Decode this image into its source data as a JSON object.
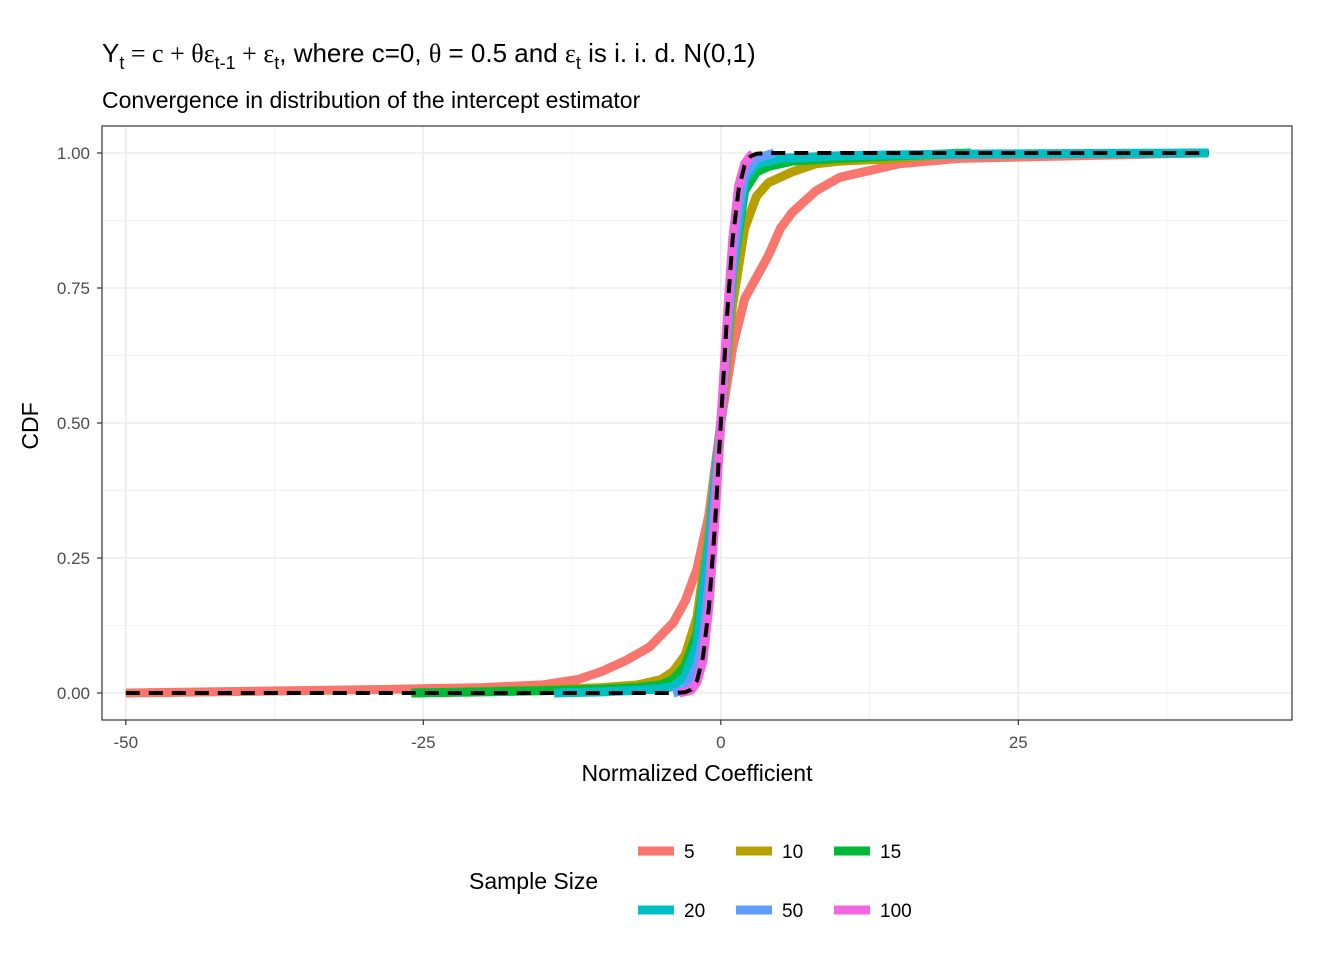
{
  "chart_data": {
    "type": "line",
    "title_parts": {
      "y": "Y",
      "t": "t",
      "eq": " = c + ",
      "theta": "θ",
      "eps": "ε",
      "t_minus_1": "t-1",
      "plus": " + ",
      "where": ", where c=0, ",
      "theta_eq": " = 0.5 and ",
      "iid": " is i. i. d. N(0,1)"
    },
    "subtitle": "Convergence in distribution of the intercept estimator",
    "xlabel": "Normalized Coefficient",
    "ylabel": "CDF",
    "xlim": [
      -52,
      48
    ],
    "ylim": [
      -0.05,
      1.05
    ],
    "x_ticks": [
      -50,
      -25,
      0,
      25
    ],
    "x_tick_labels": [
      "-50",
      "-25",
      "0",
      "25"
    ],
    "y_ticks": [
      0,
      0.25,
      0.5,
      0.75,
      1
    ],
    "y_tick_labels": [
      "0.00",
      "0.25",
      "0.50",
      "0.75",
      "1.00"
    ],
    "grid": true,
    "legend": {
      "title": "Sample Size",
      "position": "bottom"
    },
    "series": [
      {
        "name": "5",
        "color": "#F8766D",
        "points": [
          [
            -50,
            0
          ],
          [
            -40,
            0.003
          ],
          [
            -30,
            0.006
          ],
          [
            -20,
            0.01
          ],
          [
            -15,
            0.015
          ],
          [
            -12,
            0.025
          ],
          [
            -10,
            0.04
          ],
          [
            -8,
            0.06
          ],
          [
            -6,
            0.085
          ],
          [
            -4,
            0.13
          ],
          [
            -3,
            0.17
          ],
          [
            -2,
            0.23
          ],
          [
            -1,
            0.33
          ],
          [
            0,
            0.5
          ],
          [
            1,
            0.64
          ],
          [
            2,
            0.73
          ],
          [
            3,
            0.77
          ],
          [
            4,
            0.81
          ],
          [
            5,
            0.86
          ],
          [
            6,
            0.89
          ],
          [
            8,
            0.93
          ],
          [
            10,
            0.955
          ],
          [
            15,
            0.98
          ],
          [
            20,
            0.99
          ],
          [
            30,
            0.995
          ],
          [
            40,
            1
          ]
        ]
      },
      {
        "name": "10",
        "color": "#B79F00",
        "points": [
          [
            -26,
            0
          ],
          [
            -20,
            0.003
          ],
          [
            -15,
            0.006
          ],
          [
            -10,
            0.01
          ],
          [
            -7,
            0.015
          ],
          [
            -5,
            0.025
          ],
          [
            -4,
            0.04
          ],
          [
            -3,
            0.07
          ],
          [
            -2,
            0.14
          ],
          [
            -1,
            0.3
          ],
          [
            0,
            0.5
          ],
          [
            1,
            0.72
          ],
          [
            2,
            0.86
          ],
          [
            3,
            0.92
          ],
          [
            4,
            0.945
          ],
          [
            6,
            0.965
          ],
          [
            8,
            0.98
          ],
          [
            10,
            0.985
          ],
          [
            15,
            0.99
          ],
          [
            20,
            1
          ]
        ]
      },
      {
        "name": "15",
        "color": "#00BA38",
        "points": [
          [
            -26,
            0
          ],
          [
            -20,
            0.002
          ],
          [
            -15,
            0.004
          ],
          [
            -10,
            0.007
          ],
          [
            -7,
            0.01
          ],
          [
            -5,
            0.015
          ],
          [
            -4,
            0.025
          ],
          [
            -3,
            0.05
          ],
          [
            -2,
            0.11
          ],
          [
            -1,
            0.28
          ],
          [
            0,
            0.5
          ],
          [
            1,
            0.78
          ],
          [
            2,
            0.93
          ],
          [
            3,
            0.965
          ],
          [
            4,
            0.975
          ],
          [
            6,
            0.985
          ],
          [
            10,
            0.99
          ],
          [
            15,
            0.995
          ],
          [
            21,
            1
          ]
        ]
      },
      {
        "name": "20",
        "color": "#00BFC4",
        "points": [
          [
            -14,
            0
          ],
          [
            -10,
            0.002
          ],
          [
            -7,
            0.005
          ],
          [
            -5,
            0.008
          ],
          [
            -4,
            0.012
          ],
          [
            -3,
            0.03
          ],
          [
            -2,
            0.09
          ],
          [
            -1,
            0.28
          ],
          [
            0,
            0.5
          ],
          [
            1,
            0.78
          ],
          [
            2,
            0.95
          ],
          [
            3,
            0.98
          ],
          [
            5,
            0.99
          ],
          [
            10,
            0.995
          ],
          [
            20,
            0.998
          ],
          [
            41,
            1
          ]
        ]
      },
      {
        "name": "50",
        "color": "#619CFF",
        "points": [
          [
            -4,
            0
          ],
          [
            -3,
            0.006
          ],
          [
            -2,
            0.05
          ],
          [
            -1.5,
            0.1
          ],
          [
            -1,
            0.2
          ],
          [
            -0.5,
            0.35
          ],
          [
            0,
            0.5
          ],
          [
            0.5,
            0.65
          ],
          [
            1,
            0.8
          ],
          [
            1.5,
            0.9
          ],
          [
            2,
            0.96
          ],
          [
            3,
            0.99
          ],
          [
            4.5,
            1
          ]
        ]
      },
      {
        "name": "100",
        "color": "#F564E3",
        "points": [
          [
            -3.5,
            0
          ],
          [
            -2.5,
            0.005
          ],
          [
            -2,
            0.02
          ],
          [
            -1.5,
            0.06
          ],
          [
            -1,
            0.16
          ],
          [
            -0.5,
            0.32
          ],
          [
            0,
            0.5
          ],
          [
            0.5,
            0.68
          ],
          [
            1,
            0.84
          ],
          [
            1.5,
            0.94
          ],
          [
            2,
            0.98
          ],
          [
            2.7,
            1
          ]
        ]
      }
    ],
    "reference": {
      "style": "dashed",
      "color": "#000000",
      "points": [
        [
          -50,
          0
        ],
        [
          -4,
          0
        ],
        [
          -3,
          0.0013
        ],
        [
          -2.5,
          0.0062
        ],
        [
          -2,
          0.0228
        ],
        [
          -1.5,
          0.0668
        ],
        [
          -1,
          0.1587
        ],
        [
          -0.5,
          0.3085
        ],
        [
          0,
          0.5
        ],
        [
          0.5,
          0.6915
        ],
        [
          1,
          0.8413
        ],
        [
          1.5,
          0.9332
        ],
        [
          2,
          0.9772
        ],
        [
          2.5,
          0.9938
        ],
        [
          3,
          0.9987
        ],
        [
          4,
          1
        ],
        [
          41,
          1
        ]
      ]
    }
  }
}
